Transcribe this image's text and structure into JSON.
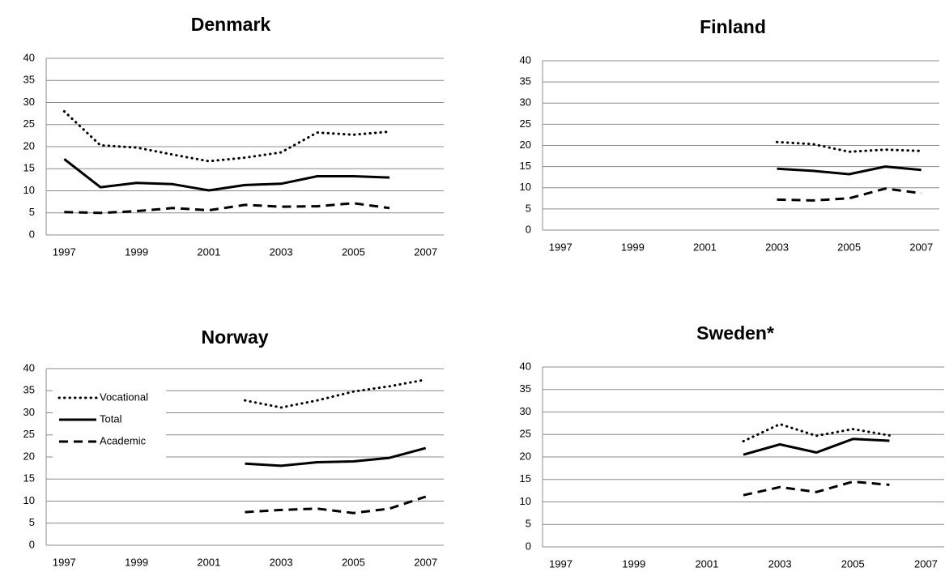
{
  "chart_data": [
    {
      "type": "line",
      "title": "Denmark",
      "categories": [
        1997,
        null,
        1999,
        null,
        2001,
        null,
        2003,
        null,
        2005,
        null,
        2007
      ],
      "series": [
        {
          "color": "#000000",
          "dash": "dotted",
          "values": [
            28,
            20.3,
            19.8,
            18.2,
            16.7,
            17.5,
            18.7,
            23.2,
            22.7,
            23.4,
            null
          ]
        },
        {
          "color": "#000000",
          "dash": "solid",
          "values": [
            17.2,
            10.8,
            11.8,
            11.5,
            10.1,
            11.3,
            11.6,
            13.3,
            13.3,
            13,
            null
          ]
        },
        {
          "color": "#000000",
          "dash": "dashed",
          "values": [
            5.2,
            5,
            5.4,
            6.1,
            5.6,
            6.8,
            6.4,
            6.5,
            7.2,
            6.1,
            null
          ]
        }
      ],
      "ylim": [
        0,
        40
      ],
      "yticks": [
        0,
        5,
        10,
        15,
        20,
        25,
        30,
        35,
        40
      ],
      "grid": true
    },
    {
      "type": "line",
      "title": "Finland",
      "categories": [
        1997,
        null,
        1999,
        null,
        2001,
        null,
        2003,
        null,
        2005,
        null,
        2007
      ],
      "series": [
        {
          "color": "#000000",
          "dash": "dotted",
          "values": [
            null,
            null,
            null,
            null,
            null,
            null,
            20.8,
            20.3,
            18.5,
            19,
            18.7
          ]
        },
        {
          "color": "#000000",
          "dash": "solid",
          "values": [
            null,
            null,
            null,
            null,
            null,
            null,
            14.5,
            14,
            13.2,
            15,
            14.2
          ]
        },
        {
          "color": "#000000",
          "dash": "dashed",
          "values": [
            null,
            null,
            null,
            null,
            null,
            null,
            7.2,
            7,
            7.5,
            9.8,
            8.7
          ]
        }
      ],
      "ylim": [
        0,
        40
      ],
      "yticks": [
        0,
        5,
        10,
        15,
        20,
        25,
        30,
        35,
        40
      ],
      "grid": true
    },
    {
      "type": "line",
      "title": "Norway",
      "categories": [
        1997,
        null,
        1999,
        null,
        2001,
        null,
        2003,
        null,
        2005,
        null,
        2007
      ],
      "series": [
        {
          "name": "Vocational",
          "color": "#000000",
          "dash": "dotted",
          "values": [
            null,
            null,
            null,
            null,
            null,
            32.8,
            31.2,
            32.8,
            34.8,
            36,
            37.5
          ]
        },
        {
          "name": "Total",
          "color": "#000000",
          "dash": "solid",
          "values": [
            null,
            null,
            null,
            null,
            null,
            18.5,
            18,
            18.8,
            19,
            19.8,
            22
          ]
        },
        {
          "name": "Academic",
          "color": "#000000",
          "dash": "dashed",
          "values": [
            null,
            null,
            null,
            null,
            null,
            7.5,
            8,
            8.3,
            7.3,
            8.3,
            11
          ]
        }
      ],
      "ylim": [
        0,
        40
      ],
      "yticks": [
        0,
        5,
        10,
        15,
        20,
        25,
        30,
        35,
        40
      ],
      "grid": true,
      "legend": "upper left"
    },
    {
      "type": "line",
      "title": "Sweden*",
      "categories": [
        1997,
        null,
        1999,
        null,
        2001,
        null,
        2003,
        null,
        2005,
        null,
        2007
      ],
      "series": [
        {
          "color": "#000000",
          "dash": "dotted",
          "values": [
            null,
            null,
            null,
            null,
            null,
            23.5,
            27.3,
            24.7,
            26.2,
            24.8,
            null
          ]
        },
        {
          "color": "#000000",
          "dash": "solid",
          "values": [
            null,
            null,
            null,
            null,
            null,
            20.5,
            22.8,
            21,
            24,
            23.6,
            null
          ]
        },
        {
          "color": "#000000",
          "dash": "dashed",
          "values": [
            null,
            null,
            null,
            null,
            null,
            11.5,
            13.3,
            12.2,
            14.5,
            13.8,
            null
          ]
        }
      ],
      "ylim": [
        0,
        40
      ],
      "yticks": [
        0,
        5,
        10,
        15,
        20,
        25,
        30,
        35,
        40
      ],
      "grid": true
    }
  ]
}
